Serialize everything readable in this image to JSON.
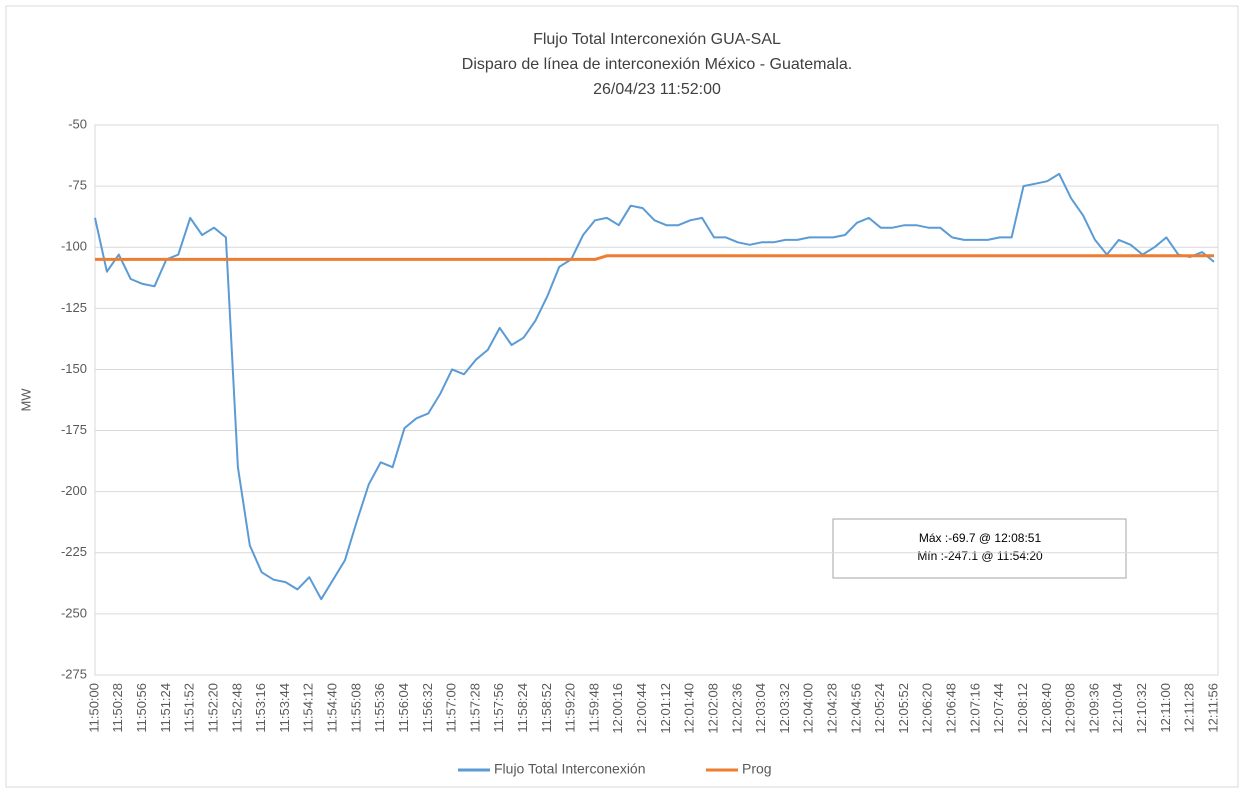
{
  "chart_data": {
    "type": "line",
    "title": [
      "Flujo Total Interconexión GUA-SAL",
      "Disparo de línea de interconexión México - Guatemala.",
      "26/04/23 11:52:00"
    ],
    "y_label": "MW",
    "categories": [
      "11:50:00",
      null,
      "11:50:28",
      null,
      "11:50:56",
      null,
      "11:51:24",
      null,
      "11:51:52",
      null,
      "11:52:20",
      null,
      "11:52:48",
      null,
      "11:53:16",
      null,
      "11:53:44",
      null,
      "11:54:12",
      null,
      "11:54:40",
      null,
      "11:55:08",
      null,
      "11:55:36",
      null,
      "11:56:04",
      null,
      "11:56:32",
      null,
      "11:57:00",
      null,
      "11:57:28",
      null,
      "11:57:56",
      null,
      "11:58:24",
      null,
      "11:58:52",
      null,
      "11:59:20",
      null,
      "11:59:48",
      null,
      "12:00:16",
      null,
      "12:00:44",
      null,
      "12:01:12",
      null,
      "12:01:40",
      null,
      "12:02:08",
      null,
      "12:02:36",
      null,
      "12:03:04",
      null,
      "12:03:32",
      null,
      "12:04:00",
      null,
      "12:04:28",
      null,
      "12:04:56",
      null,
      "12:05:24",
      null,
      "12:05:52",
      null,
      "12:06:20",
      null,
      "12:06:48",
      null,
      "12:07:16",
      null,
      "12:07:44",
      null,
      "12:08:12",
      null,
      "12:08:40",
      null,
      "12:09:08",
      null,
      "12:09:36",
      null,
      "12:10:04",
      null,
      "12:10:32",
      null,
      "12:11:00",
      null,
      "12:11:28",
      null,
      "12:11:56"
    ],
    "series": [
      {
        "name": "Flujo Total Interconexión",
        "color": "#5b9bd5",
        "values": [
          -88,
          -110,
          -103,
          -113,
          -115,
          -116,
          -105,
          -103,
          -88,
          -95,
          -92,
          -96,
          -190,
          -222,
          -233,
          -236,
          -237,
          -240,
          -235,
          -244,
          -236,
          -228,
          -212,
          -197,
          -188,
          -190,
          -174,
          -170,
          -168,
          -160,
          -150,
          -152,
          -146,
          -142,
          -133,
          -140,
          -137,
          -130,
          -120,
          -108,
          -105,
          -95,
          -89,
          -88,
          -91,
          -83,
          -84,
          -89,
          -91,
          -91,
          -89,
          -88,
          -96,
          -96,
          -98,
          -99,
          -98,
          -98,
          -97,
          -97,
          -96,
          -96,
          -96,
          -95,
          -90,
          -88,
          -92,
          -92,
          -91,
          -91,
          -92,
          -92,
          -96,
          -97,
          -97,
          -97,
          -96,
          -96,
          -75,
          -74,
          -73,
          -70,
          -80,
          -87,
          -97,
          -103,
          -97,
          -99,
          -103,
          -100,
          -96,
          -103,
          -104,
          -102,
          -106
        ]
      },
      {
        "name": "Prog",
        "color": "#ed7d31",
        "values": [
          -105,
          -105,
          -105,
          -105,
          -105,
          -105,
          -105,
          -105,
          -105,
          -105,
          -105,
          -105,
          -105,
          -105,
          -105,
          -105,
          -105,
          -105,
          -105,
          -105,
          -105,
          -105,
          -105,
          -105,
          -105,
          -105,
          -105,
          -105,
          -105,
          -105,
          -105,
          -105,
          -105,
          -105,
          -105,
          -105,
          -105,
          -105,
          -105,
          -105,
          -105,
          -105,
          -105,
          -103.5,
          -103.5,
          -103.5,
          -103.5,
          -103.5,
          -103.5,
          -103.5,
          -103.5,
          -103.5,
          -103.5,
          -103.5,
          -103.5,
          -103.5,
          -103.5,
          -103.5,
          -103.5,
          -103.5,
          -103.5,
          -103.5,
          -103.5,
          -103.5,
          -103.5,
          -103.5,
          -103.5,
          -103.5,
          -103.5,
          -103.5,
          -103.5,
          -103.5,
          -103.5,
          -103.5,
          -103.5,
          -103.5,
          -103.5,
          -103.5,
          -103.5,
          -103.5,
          -103.5,
          -103.5,
          -103.5,
          -103.5,
          -103.5,
          -103.5,
          -103.5,
          -103.5,
          -103.5,
          -103.5,
          -103.5,
          -103.5,
          -103.5,
          -103.5,
          -103.5
        ]
      }
    ],
    "ylim": [
      -275,
      -50
    ],
    "yticks": [
      -50,
      -75,
      -100,
      -125,
      -150,
      -175,
      -200,
      -225,
      -250,
      -275
    ],
    "grid": true,
    "legend": "bottom",
    "annotation": [
      "Máx :-69.7 @ 12:08:51",
      "Mín :-247.1 @ 11:54:20"
    ]
  }
}
